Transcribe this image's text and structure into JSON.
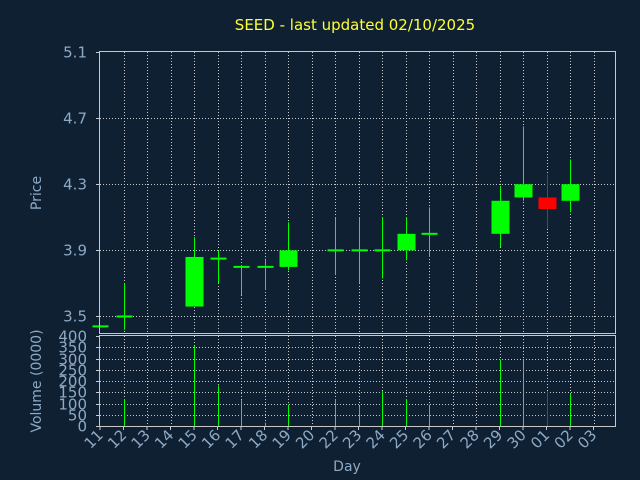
{
  "chart_data": {
    "title": "SEED - last updated 02/10/2025",
    "type": "candlestick",
    "xlabel": "Day",
    "x_ticks": [
      "11",
      "12",
      "13",
      "14",
      "15",
      "16",
      "17",
      "18",
      "19",
      "20",
      "22",
      "23",
      "24",
      "25",
      "26",
      "27",
      "28",
      "29",
      "30",
      "01",
      "02",
      "03"
    ],
    "price_panel": {
      "ylabel": "Price",
      "ylim": [
        3.4,
        5.1
      ],
      "yticks": [
        "3.5",
        "3.9",
        "4.3",
        "4.7",
        "5.1"
      ],
      "candles": [
        {
          "day": "11",
          "open": 3.44,
          "high": 3.44,
          "low": 3.44,
          "close": 3.44,
          "color": "up"
        },
        {
          "day": "12",
          "open": 3.5,
          "high": 3.7,
          "low": 3.42,
          "close": 3.5,
          "color": "up"
        },
        {
          "day": "15",
          "open": 3.56,
          "high": 3.98,
          "low": 3.56,
          "close": 3.86,
          "color": "up"
        },
        {
          "day": "16",
          "open": 3.85,
          "high": 3.9,
          "low": 3.7,
          "close": 3.85,
          "color": "up"
        },
        {
          "day": "17",
          "open": 3.8,
          "high": 3.81,
          "low": 3.63,
          "close": 3.8,
          "color": "up"
        },
        {
          "day": "18",
          "open": 3.8,
          "high": 3.85,
          "low": 3.66,
          "close": 3.8,
          "color": "up"
        },
        {
          "day": "19",
          "open": 3.8,
          "high": 4.07,
          "low": 3.78,
          "close": 3.9,
          "color": "up"
        },
        {
          "day": "22",
          "open": 3.9,
          "high": 4.1,
          "low": 3.75,
          "close": 3.9,
          "color": "up"
        },
        {
          "day": "23",
          "open": 3.9,
          "high": 4.1,
          "low": 3.7,
          "close": 3.9,
          "color": "up"
        },
        {
          "day": "24",
          "open": 3.9,
          "high": 4.1,
          "low": 3.73,
          "close": 3.9,
          "color": "up"
        },
        {
          "day": "25",
          "open": 3.9,
          "high": 4.1,
          "low": 3.84,
          "close": 4.0,
          "color": "up"
        },
        {
          "day": "26",
          "open": 4.0,
          "high": 4.16,
          "low": 3.86,
          "close": 4.0,
          "color": "up"
        },
        {
          "day": "29",
          "open": 4.0,
          "high": 4.29,
          "low": 3.92,
          "close": 4.2,
          "color": "up"
        },
        {
          "day": "30",
          "open": 4.22,
          "high": 4.65,
          "low": 4.2,
          "close": 4.3,
          "color": "up"
        },
        {
          "day": "01",
          "open": 4.22,
          "high": 4.36,
          "low": 4.03,
          "close": 4.15,
          "color": "down"
        },
        {
          "day": "02",
          "open": 4.2,
          "high": 4.45,
          "low": 4.13,
          "close": 4.3,
          "color": "up"
        }
      ]
    },
    "volume_panel": {
      "ylabel": "Volume (0000)",
      "ylim": [
        0,
        400
      ],
      "yticks": [
        "0",
        "50",
        "100",
        "150",
        "200",
        "250",
        "300",
        "350",
        "400"
      ],
      "bars": [
        {
          "day": "12",
          "value": 120,
          "color": "up"
        },
        {
          "day": "15",
          "value": 355,
          "color": "up"
        },
        {
          "day": "16",
          "value": 180,
          "color": "up"
        },
        {
          "day": "17",
          "value": 115,
          "color": "up"
        },
        {
          "day": "18",
          "value": 15,
          "color": "up"
        },
        {
          "day": "19",
          "value": 95,
          "color": "up"
        },
        {
          "day": "22",
          "value": 120,
          "color": "up"
        },
        {
          "day": "23",
          "value": 90,
          "color": "up"
        },
        {
          "day": "24",
          "value": 155,
          "color": "up"
        },
        {
          "day": "25",
          "value": 120,
          "color": "up"
        },
        {
          "day": "26",
          "value": 95,
          "color": "up"
        },
        {
          "day": "29",
          "value": 295,
          "color": "up"
        },
        {
          "day": "30",
          "value": 295,
          "color": "up"
        },
        {
          "day": "01",
          "value": 155,
          "color": "down"
        },
        {
          "day": "02",
          "value": 145,
          "color": "up"
        }
      ]
    },
    "colors": {
      "up": "#00ff00",
      "down": "#ff0000",
      "background": "#0f2033",
      "grid": "#c8c8c8",
      "text": "#8da9c4",
      "title": "#ffff33"
    },
    "grid": true
  }
}
